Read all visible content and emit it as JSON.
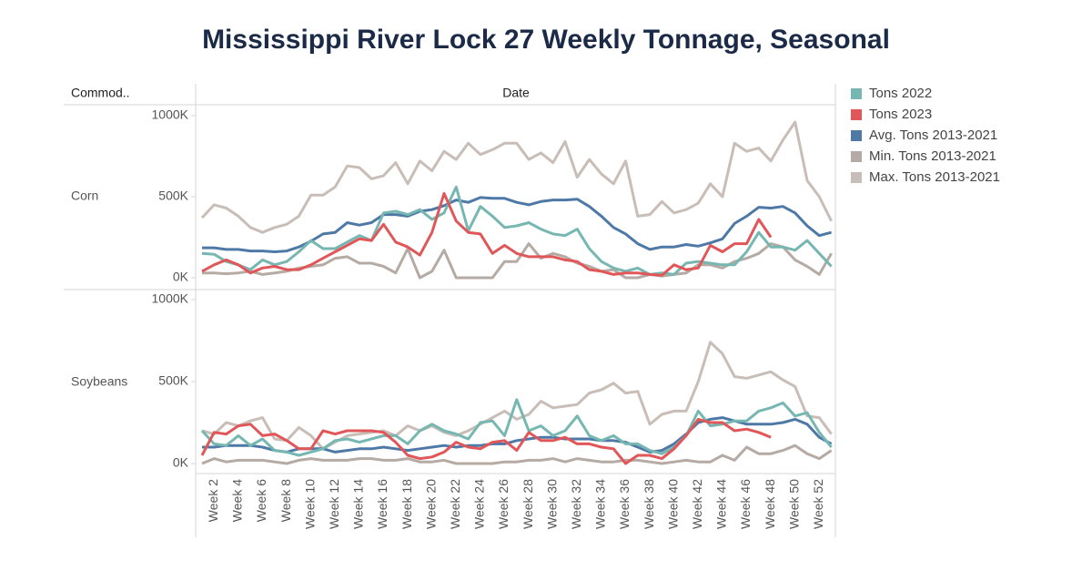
{
  "chart_data": {
    "type": "line",
    "title": "Mississippi River Lock 27 Weekly Tonnage, Seasonal",
    "row_header": "Commod..",
    "x_header": "Date",
    "categories": [
      null,
      "Week 2",
      null,
      "Week 4",
      null,
      "Week 6",
      null,
      "Week 8",
      null,
      "Week 10",
      null,
      "Week 12",
      null,
      "Week 14",
      null,
      "Week 16",
      null,
      "Week 18",
      null,
      "Week 20",
      null,
      "Week 22",
      null,
      "Week 24",
      null,
      "Week 26",
      null,
      "Week 28",
      null,
      "Week 30",
      null,
      "Week 32",
      null,
      "Week 34",
      null,
      "Week 36",
      null,
      "Week 38",
      null,
      "Week 40",
      null,
      "Week 42",
      null,
      "Week 44",
      null,
      "Week 46",
      null,
      "Week 48",
      null,
      "Week 50",
      null,
      "Week 52",
      null
    ],
    "legend": [
      {
        "name": "Tons 2022",
        "color": "#76b7b2"
      },
      {
        "name": "Tons 2023",
        "color": "#e15759"
      },
      {
        "name": "Avg. Tons 2013-2021",
        "color": "#4e79a7"
      },
      {
        "name": "Min. Tons 2013-2021",
        "color": "#b5aaa4"
      },
      {
        "name": "Max. Tons 2013-2021",
        "color": "#c8bdb7"
      }
    ],
    "panels": [
      {
        "label": "Corn",
        "ylim": [
          0,
          1000000
        ],
        "yticks": [
          {
            "value": 0,
            "label": "0K"
          },
          {
            "value": 500000,
            "label": "500K"
          },
          {
            "value": 1000000,
            "label": "1000K"
          }
        ],
        "series": [
          {
            "values": [
              150000,
              145000,
              100000,
              80000,
              50000,
              110000,
              80000,
              100000,
              160000,
              230000,
              180000,
              180000,
              220000,
              260000,
              230000,
              400000,
              410000,
              390000,
              420000,
              360000,
              400000,
              560000,
              290000,
              440000,
              380000,
              310000,
              320000,
              340000,
              300000,
              270000,
              260000,
              300000,
              180000,
              100000,
              60000,
              40000,
              60000,
              20000,
              30000,
              20000,
              90000,
              100000,
              90000,
              80000,
              80000,
              160000,
              280000,
              190000,
              190000,
              170000,
              230000,
              150000,
              70000
            ]
          },
          {
            "values": [
              40000,
              80000,
              110000,
              80000,
              30000,
              60000,
              70000,
              50000,
              50000,
              80000,
              120000,
              160000,
              200000,
              240000,
              230000,
              330000,
              220000,
              190000,
              140000,
              280000,
              520000,
              350000,
              280000,
              270000,
              150000,
              200000,
              150000,
              130000,
              130000,
              130000,
              110000,
              100000,
              50000,
              40000,
              20000,
              30000,
              30000,
              20000,
              15000,
              80000,
              50000,
              60000,
              200000,
              160000,
              210000,
              210000,
              360000,
              250000,
              null,
              null,
              null,
              null,
              null
            ]
          },
          {
            "values": [
              185000,
              185000,
              175000,
              175000,
              165000,
              165000,
              160000,
              165000,
              190000,
              225000,
              270000,
              280000,
              340000,
              325000,
              340000,
              390000,
              390000,
              380000,
              410000,
              420000,
              445000,
              480000,
              465000,
              495000,
              490000,
              490000,
              465000,
              450000,
              470000,
              480000,
              480000,
              485000,
              440000,
              380000,
              310000,
              270000,
              210000,
              175000,
              190000,
              190000,
              205000,
              195000,
              215000,
              240000,
              335000,
              380000,
              435000,
              430000,
              440000,
              400000,
              320000,
              260000,
              280000
            ]
          },
          {
            "values": [
              30000,
              30000,
              25000,
              30000,
              40000,
              20000,
              30000,
              40000,
              60000,
              70000,
              80000,
              120000,
              130000,
              90000,
              90000,
              70000,
              30000,
              180000,
              0,
              40000,
              170000,
              0,
              0,
              0,
              0,
              100000,
              100000,
              210000,
              120000,
              150000,
              130000,
              90000,
              70000,
              40000,
              50000,
              0,
              0,
              20000,
              10000,
              20000,
              30000,
              80000,
              80000,
              60000,
              100000,
              120000,
              150000,
              210000,
              190000,
              110000,
              70000,
              20000,
              150000
            ]
          },
          {
            "values": [
              370000,
              450000,
              430000,
              380000,
              310000,
              280000,
              310000,
              330000,
              380000,
              510000,
              510000,
              560000,
              690000,
              680000,
              610000,
              630000,
              710000,
              580000,
              720000,
              660000,
              780000,
              730000,
              830000,
              760000,
              790000,
              830000,
              830000,
              730000,
              770000,
              710000,
              840000,
              620000,
              730000,
              640000,
              580000,
              720000,
              380000,
              390000,
              470000,
              400000,
              420000,
              460000,
              580000,
              500000,
              830000,
              780000,
              800000,
              720000,
              850000,
              960000,
              600000,
              500000,
              350000
            ]
          }
        ]
      },
      {
        "label": "Soybeans",
        "ylim": [
          0,
          1000000
        ],
        "yticks": [
          {
            "value": 0,
            "label": "0K"
          },
          {
            "value": 500000,
            "label": "500K"
          },
          {
            "value": 1000000,
            "label": "1000K"
          }
        ],
        "series": [
          {
            "values": [
              200000,
              120000,
              110000,
              170000,
              110000,
              150000,
              80000,
              70000,
              50000,
              70000,
              90000,
              140000,
              150000,
              130000,
              150000,
              170000,
              170000,
              120000,
              200000,
              240000,
              200000,
              180000,
              150000,
              250000,
              260000,
              170000,
              390000,
              200000,
              230000,
              170000,
              200000,
              290000,
              170000,
              140000,
              170000,
              120000,
              120000,
              80000,
              60000,
              100000,
              170000,
              320000,
              230000,
              240000,
              260000,
              260000,
              320000,
              340000,
              370000,
              290000,
              310000,
              190000,
              100000
            ]
          },
          {
            "values": [
              50000,
              190000,
              180000,
              230000,
              240000,
              170000,
              180000,
              140000,
              90000,
              90000,
              200000,
              180000,
              200000,
              200000,
              200000,
              190000,
              130000,
              50000,
              30000,
              40000,
              70000,
              130000,
              100000,
              90000,
              130000,
              140000,
              80000,
              190000,
              140000,
              140000,
              160000,
              120000,
              120000,
              100000,
              90000,
              0,
              50000,
              50000,
              30000,
              90000,
              170000,
              270000,
              250000,
              250000,
              200000,
              210000,
              190000,
              160000,
              null,
              null,
              null,
              null,
              null
            ]
          },
          {
            "values": [
              100000,
              100000,
              110000,
              110000,
              110000,
              100000,
              80000,
              70000,
              90000,
              90000,
              90000,
              70000,
              80000,
              90000,
              90000,
              100000,
              90000,
              80000,
              90000,
              100000,
              110000,
              100000,
              110000,
              110000,
              120000,
              120000,
              140000,
              150000,
              160000,
              160000,
              150000,
              150000,
              150000,
              140000,
              140000,
              130000,
              100000,
              70000,
              80000,
              120000,
              180000,
              250000,
              270000,
              280000,
              260000,
              240000,
              240000,
              240000,
              250000,
              270000,
              240000,
              160000,
              120000
            ]
          },
          {
            "values": [
              0,
              30000,
              10000,
              20000,
              20000,
              20000,
              10000,
              0,
              20000,
              30000,
              20000,
              20000,
              20000,
              30000,
              30000,
              20000,
              20000,
              30000,
              10000,
              10000,
              20000,
              0,
              0,
              0,
              0,
              10000,
              10000,
              20000,
              20000,
              30000,
              10000,
              30000,
              20000,
              10000,
              10000,
              20000,
              20000,
              10000,
              0,
              10000,
              20000,
              10000,
              10000,
              50000,
              20000,
              100000,
              60000,
              60000,
              80000,
              110000,
              60000,
              30000,
              80000
            ]
          },
          {
            "values": [
              200000,
              180000,
              250000,
              230000,
              260000,
              280000,
              150000,
              140000,
              220000,
              170000,
              90000,
              130000,
              170000,
              180000,
              190000,
              200000,
              170000,
              230000,
              200000,
              230000,
              190000,
              170000,
              200000,
              240000,
              280000,
              320000,
              270000,
              300000,
              380000,
              340000,
              350000,
              360000,
              430000,
              450000,
              490000,
              430000,
              440000,
              240000,
              300000,
              320000,
              320000,
              500000,
              740000,
              670000,
              530000,
              520000,
              540000,
              560000,
              510000,
              470000,
              290000,
              280000,
              180000
            ]
          }
        ]
      }
    ]
  }
}
